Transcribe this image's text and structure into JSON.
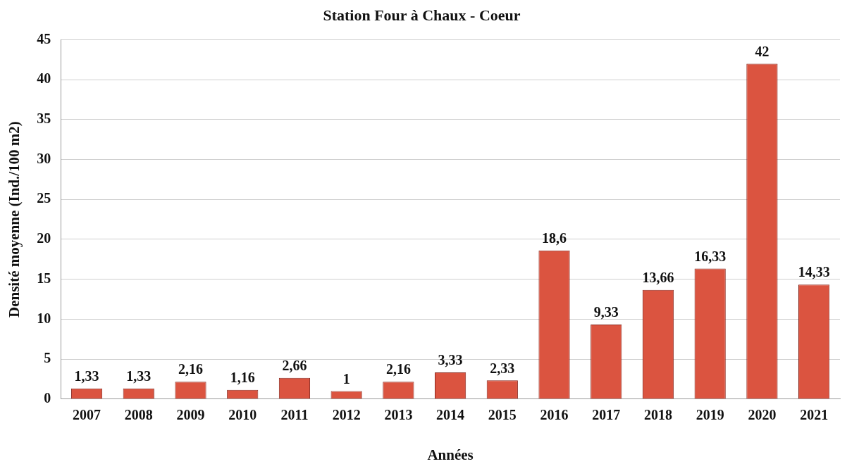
{
  "chart_data": {
    "type": "bar",
    "title": "Station Four à Chaux - Coeur",
    "xlabel": "Années",
    "ylabel": "Densité moyenne (Ind./100 m2)",
    "categories": [
      "2007",
      "2008",
      "2009",
      "2010",
      "2011",
      "2012",
      "2013",
      "2014",
      "2015",
      "2016",
      "2017",
      "2018",
      "2019",
      "2020",
      "2021"
    ],
    "values": [
      1.33,
      1.33,
      2.16,
      1.16,
      2.66,
      1,
      2.16,
      3.33,
      2.33,
      18.6,
      9.33,
      13.66,
      16.33,
      42,
      14.33
    ],
    "value_labels": [
      "1,33",
      "1,33",
      "2,16",
      "1,16",
      "2,66",
      "1",
      "2,16",
      "3,33",
      "2,33",
      "18,6",
      "9,33",
      "13,66",
      "16,33",
      "42",
      "14,33"
    ],
    "color": "#db5440",
    "ylim": [
      0,
      45
    ],
    "yticks": [
      0,
      5,
      10,
      15,
      20,
      25,
      30,
      35,
      40,
      45
    ],
    "grid": "y",
    "legend": false
  }
}
